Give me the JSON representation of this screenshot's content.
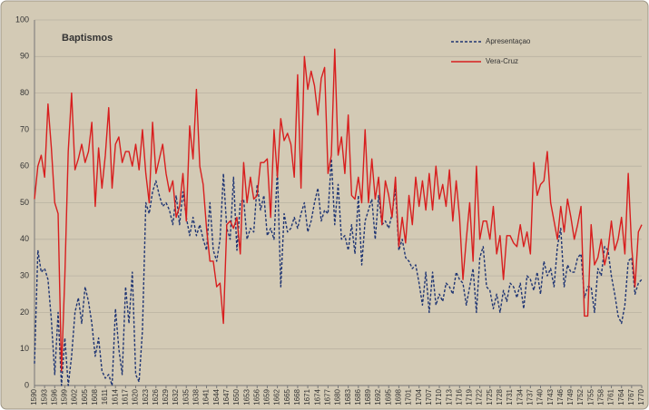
{
  "chart_data": {
    "type": "line",
    "title": "Baptismos",
    "x": [
      1590,
      1591,
      1592,
      1593,
      1594,
      1595,
      1596,
      1597,
      1598,
      1599,
      1600,
      1601,
      1602,
      1603,
      1604,
      1605,
      1606,
      1607,
      1608,
      1609,
      1610,
      1611,
      1612,
      1613,
      1614,
      1615,
      1616,
      1617,
      1618,
      1619,
      1620,
      1621,
      1622,
      1623,
      1624,
      1625,
      1626,
      1627,
      1628,
      1629,
      1630,
      1631,
      1632,
      1633,
      1634,
      1635,
      1636,
      1637,
      1638,
      1639,
      1640,
      1641,
      1642,
      1643,
      1644,
      1645,
      1646,
      1647,
      1648,
      1649,
      1650,
      1651,
      1652,
      1653,
      1654,
      1655,
      1656,
      1657,
      1658,
      1659,
      1660,
      1661,
      1662,
      1663,
      1664,
      1665,
      1666,
      1667,
      1668,
      1669,
      1670,
      1671,
      1672,
      1673,
      1674,
      1675,
      1676,
      1677,
      1678,
      1679,
      1680,
      1681,
      1682,
      1683,
      1684,
      1685,
      1686,
      1687,
      1688,
      1689,
      1690,
      1691,
      1692,
      1693,
      1694,
      1695,
      1696,
      1697,
      1698,
      1699,
      1700,
      1701,
      1702,
      1703,
      1704,
      1705,
      1706,
      1707,
      1708,
      1709,
      1710,
      1711,
      1712,
      1713,
      1714,
      1715,
      1716,
      1717,
      1718,
      1719,
      1720,
      1721,
      1722,
      1723,
      1724,
      1725,
      1726,
      1727,
      1728,
      1729,
      1730,
      1731,
      1732,
      1733,
      1734,
      1735,
      1736,
      1737,
      1738,
      1739,
      1740,
      1741,
      1742,
      1743,
      1744,
      1745,
      1746,
      1747,
      1748,
      1749,
      1750,
      1751,
      1752,
      1753,
      1754,
      1755,
      1756,
      1757,
      1758,
      1759,
      1760,
      1761,
      1762,
      1763,
      1764,
      1765,
      1766,
      1767,
      1768,
      1769,
      1770
    ],
    "series": [
      {
        "name": "Apresentaçao",
        "color": "#1f3573",
        "style": "dashed",
        "values": [
          6,
          37,
          31,
          32,
          29,
          18,
          3,
          20,
          0,
          13,
          0,
          8,
          20,
          24,
          17,
          27,
          23,
          17,
          8,
          13,
          4,
          2,
          3,
          0,
          21,
          10,
          3,
          27,
          17,
          31,
          3,
          1,
          15,
          50,
          47,
          53,
          56,
          52,
          49,
          50,
          48,
          44,
          52,
          44,
          53,
          46,
          41,
          46,
          41,
          44,
          40,
          37,
          50,
          37,
          34,
          40,
          58,
          43,
          40,
          57,
          37,
          50,
          51,
          40,
          43,
          42,
          55,
          48,
          52,
          41,
          43,
          40,
          59,
          27,
          47,
          42,
          43,
          46,
          43,
          47,
          50,
          42,
          45,
          50,
          54,
          45,
          48,
          47,
          62,
          44,
          55,
          40,
          41,
          37,
          44,
          36,
          52,
          33,
          45,
          48,
          51,
          40,
          52,
          44,
          45,
          43,
          47,
          54,
          37,
          40,
          35,
          34,
          32,
          33,
          28,
          22,
          31,
          20,
          31,
          22,
          25,
          23,
          28,
          27,
          25,
          31,
          29,
          28,
          22,
          27,
          32,
          20,
          35,
          38,
          27,
          26,
          21,
          25,
          20,
          26,
          23,
          28,
          27,
          24,
          28,
          21,
          30,
          29,
          26,
          31,
          25,
          34,
          30,
          32,
          27,
          38,
          43,
          27,
          33,
          31,
          31,
          35,
          36,
          24,
          27,
          27,
          20,
          32,
          30,
          38,
          37,
          30,
          25,
          19,
          17,
          22,
          34,
          35,
          25,
          28,
          29
        ]
      },
      {
        "name": "Vera-Cruz",
        "color": "#d81e1e",
        "style": "solid",
        "values": [
          51,
          60,
          63,
          57,
          77,
          65,
          50,
          47,
          4,
          30,
          64,
          80,
          59,
          62,
          66,
          61,
          64,
          72,
          49,
          65,
          54,
          63,
          76,
          54,
          66,
          68,
          61,
          64,
          64,
          60,
          66,
          59,
          70,
          58,
          50,
          72,
          58,
          62,
          66,
          58,
          53,
          56,
          46,
          49,
          58,
          45,
          71,
          62,
          81,
          60,
          55,
          43,
          34,
          34,
          27,
          28,
          17,
          44,
          45,
          43,
          46,
          36,
          61,
          50,
          57,
          51,
          52,
          61,
          61,
          62,
          46,
          70,
          57,
          73,
          67,
          69,
          66,
          57,
          85,
          54,
          90,
          81,
          86,
          82,
          74,
          84,
          87,
          58,
          63,
          92,
          63,
          68,
          58,
          74,
          52,
          51,
          57,
          50,
          70,
          50,
          62,
          51,
          57,
          44,
          56,
          52,
          46,
          57,
          38,
          46,
          39,
          52,
          44,
          57,
          49,
          56,
          48,
          58,
          48,
          60,
          51,
          55,
          49,
          59,
          45,
          56,
          46,
          29,
          40,
          50,
          34,
          60,
          40,
          45,
          45,
          40,
          49,
          36,
          41,
          29,
          41,
          41,
          39,
          38,
          44,
          38,
          42,
          36,
          61,
          52,
          55,
          56,
          64,
          50,
          45,
          40,
          49,
          42,
          51,
          46,
          40,
          44,
          49,
          19,
          19,
          44,
          33,
          35,
          40,
          33,
          37,
          45,
          37,
          40,
          46,
          36,
          58,
          38,
          27,
          42,
          44
        ]
      }
    ],
    "xlim": [
      1590,
      1770
    ],
    "xticks": [
      1590,
      1593,
      1596,
      1599,
      1602,
      1605,
      1608,
      1611,
      1614,
      1617,
      1620,
      1623,
      1626,
      1629,
      1632,
      1635,
      1638,
      1641,
      1644,
      1647,
      1650,
      1653,
      1656,
      1659,
      1662,
      1665,
      1668,
      1671,
      1674,
      1677,
      1680,
      1683,
      1686,
      1689,
      1692,
      1695,
      1698,
      1701,
      1704,
      1707,
      1710,
      1713,
      1716,
      1719,
      1722,
      1725,
      1728,
      1731,
      1734,
      1737,
      1740,
      1743,
      1746,
      1749,
      1752,
      1755,
      1758,
      1761,
      1764,
      1767,
      1770
    ],
    "ylim": [
      0,
      100
    ],
    "yticks": [
      0,
      10,
      20,
      30,
      40,
      50,
      60,
      70,
      80,
      90,
      100
    ],
    "grid": true
  }
}
